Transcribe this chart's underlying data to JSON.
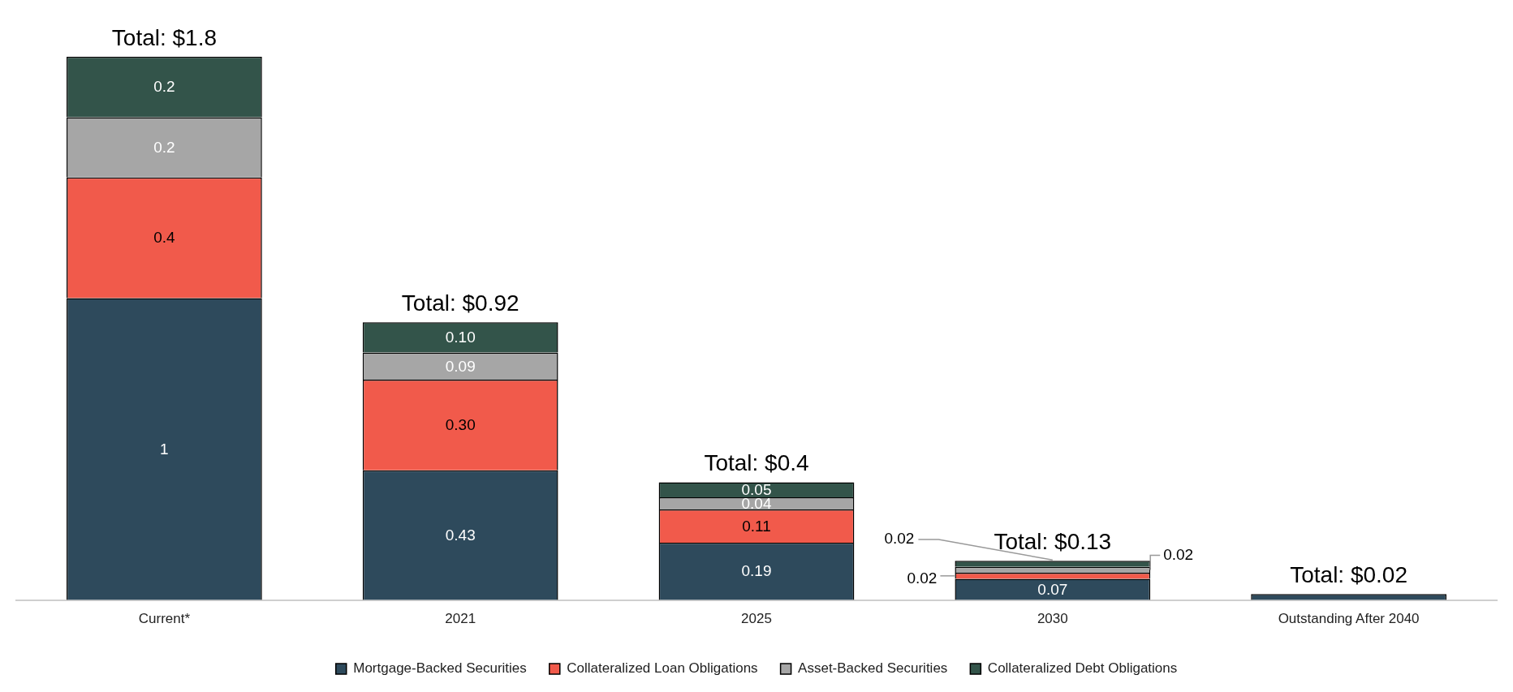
{
  "chart_data": {
    "type": "bar",
    "stacked": true,
    "categories": [
      "Current*",
      "2021",
      "2025",
      "2030",
      "Outstanding After 2040"
    ],
    "series": [
      {
        "name": "Mortgage-Backed Securities",
        "color": "#2e4a5c",
        "values": [
          1,
          0.43,
          0.19,
          0.07,
          0.02
        ],
        "value_labels": [
          "1",
          "0.43",
          "0.19",
          "0.07",
          null
        ]
      },
      {
        "name": "Collateralized Loan Obligations",
        "color": "#f15a4b",
        "values": [
          0.4,
          0.3,
          0.11,
          0.02,
          null
        ],
        "value_labels": [
          "0.4",
          "0.30",
          "0.11",
          "0.02",
          null
        ]
      },
      {
        "name": "Asset-Backed Securities",
        "color": "#a6a6a6",
        "values": [
          0.2,
          0.09,
          0.04,
          0.02,
          null
        ],
        "value_labels": [
          "0.2",
          "0.09",
          "0.04",
          "0.02",
          null
        ]
      },
      {
        "name": "Collateralized Debt Obligations",
        "color": "#33544a",
        "values": [
          0.2,
          0.1,
          0.05,
          0.02,
          null
        ],
        "value_labels": [
          "0.2",
          "0.10",
          "0.05",
          "0.02",
          null
        ]
      }
    ],
    "totals": [
      "Total: $1.8",
      "Total: $0.92",
      "Total: $0.4",
      "Total: $0.13",
      "Total: $0.02"
    ],
    "legend": "bottom",
    "grid": false
  }
}
